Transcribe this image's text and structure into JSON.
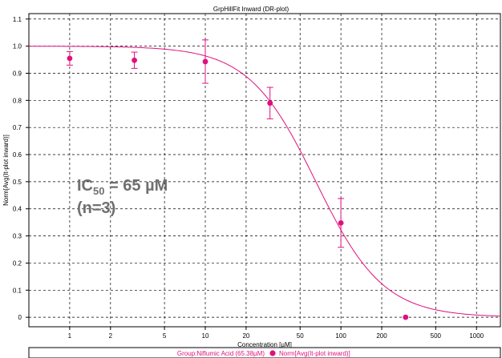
{
  "chart_data": {
    "type": "scatter",
    "title": "GrpHillFit Inward (DR-plot)",
    "xlabel": "Concentration [µM]",
    "ylabel": "Norm[Avg(It-plot inward)]",
    "x_scale": "log",
    "xlim": [
      0.5,
      1500
    ],
    "ylim": [
      -0.035,
      1.12
    ],
    "x_ticks": [
      1,
      2,
      5,
      10,
      20,
      50,
      100,
      200,
      500,
      1000
    ],
    "y_ticks": [
      0,
      0.1,
      0.2,
      0.3,
      0.4,
      0.5,
      0.6,
      0.7,
      0.8,
      0.9,
      1.0,
      1.1
    ],
    "grid": true,
    "colors": {
      "series": "#e0107f",
      "annotation": "#707070"
    },
    "series": [
      {
        "name": "Norm[Avg(It-plot inward)]",
        "x": [
          1,
          3,
          10,
          30,
          100,
          300
        ],
        "y": [
          0.955,
          0.948,
          0.943,
          0.79,
          0.348,
          0.0
        ],
        "error": [
          0.025,
          0.03,
          0.08,
          0.058,
          0.09,
          0
        ]
      }
    ],
    "fit": {
      "name": "Group:Niflumic Acid (65.38µM)",
      "model": "hill",
      "ic50": 65.38,
      "top": 1.0,
      "bottom": 0.0,
      "hill": 1.75
    },
    "annotation": {
      "main_prefix": "IC",
      "main_subscript": "50",
      "main_suffix": " = 65 µM",
      "second_line": "(n=3)"
    },
    "legend": {
      "placement": "bottom",
      "fit_label": "Group:Niflumic Acid (65.38µM)",
      "marker_label": "Norm[Avg(It-plot inward)]"
    }
  }
}
